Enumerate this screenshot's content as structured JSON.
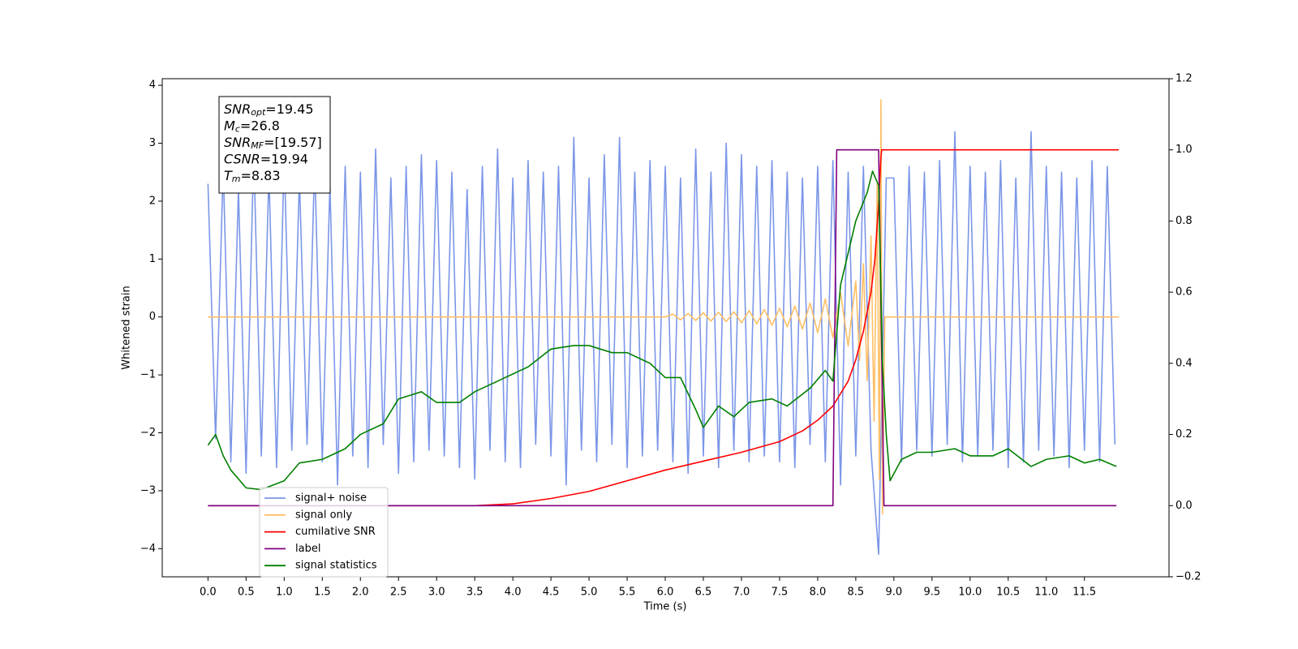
{
  "chart_data": {
    "type": "line",
    "xlabel": "Time (s)",
    "ylabel": "Whitened strain",
    "xlim": [
      -0.6,
      12.61
    ],
    "ylim": [
      -4.486,
      4.114
    ],
    "y2lim": [
      -0.2,
      1.2
    ],
    "xticks": [
      {
        "value": 0,
        "label": "0.0"
      },
      {
        "value": 0.5,
        "label": "0.5"
      },
      {
        "value": 1,
        "label": "1.0"
      },
      {
        "value": 1.5,
        "label": "1.5"
      },
      {
        "value": 2,
        "label": "2.0"
      },
      {
        "value": 2.5,
        "label": "2.5"
      },
      {
        "value": 3,
        "label": "3.0"
      },
      {
        "value": 3.5,
        "label": "3.5"
      },
      {
        "value": 4,
        "label": "4.0"
      },
      {
        "value": 4.5,
        "label": "4.5"
      },
      {
        "value": 5,
        "label": "5.0"
      },
      {
        "value": 5.5,
        "label": "5.5"
      },
      {
        "value": 6,
        "label": "6.0"
      },
      {
        "value": 6.5,
        "label": "6.5"
      },
      {
        "value": 7,
        "label": "7.0"
      },
      {
        "value": 7.5,
        "label": "7.5"
      },
      {
        "value": 8,
        "label": "8.0"
      },
      {
        "value": 8.5,
        "label": "8.5"
      },
      {
        "value": 9,
        "label": "9.0"
      },
      {
        "value": 9.5,
        "label": "9.5"
      },
      {
        "value": 10,
        "label": "10.0"
      },
      {
        "value": 10.5,
        "label": "10.5"
      },
      {
        "value": 11,
        "label": "11.0"
      },
      {
        "value": 11.5,
        "label": "11.5"
      }
    ],
    "yticks": [
      {
        "value": -4,
        "label": "−4"
      },
      {
        "value": -3,
        "label": "−3"
      },
      {
        "value": -2,
        "label": "−2"
      },
      {
        "value": -1,
        "label": "−1"
      },
      0,
      1,
      2,
      3,
      4
    ],
    "y2ticks": [
      {
        "value": -0.2,
        "label": "−0.2"
      },
      {
        "value": 0,
        "label": "0.0"
      },
      {
        "value": 0.2,
        "label": "0.2"
      },
      {
        "value": 0.4,
        "label": "0.4"
      },
      {
        "value": 0.6,
        "label": "0.6"
      },
      {
        "value": 0.8,
        "label": "0.8"
      },
      {
        "value": 1,
        "label": "1.0"
      },
      {
        "value": 1.2,
        "label": "1.2"
      }
    ],
    "legend_position": "lower left",
    "annotation": [
      {
        "text": "SNR",
        "sub": "opt",
        "value": "=19.45"
      },
      {
        "text": "M",
        "sub": "c",
        "value": "=26.8"
      },
      {
        "text": "SNR",
        "sub": "MF",
        "value": "=[19.57]"
      },
      {
        "text": "CSNR",
        "value": "=19.94"
      },
      {
        "text": "T",
        "sub": "m",
        "value": "=8.83"
      }
    ],
    "series": [
      {
        "name": "signal+ noise",
        "color": "#7b96e8",
        "x": [
          0.0,
          0.1,
          0.2,
          0.3,
          0.4,
          0.5,
          0.6,
          0.7,
          0.8,
          0.9,
          1.0,
          1.1,
          1.2,
          1.3,
          1.4,
          1.5,
          1.6,
          1.7,
          1.8,
          1.9,
          2.0,
          2.1,
          2.2,
          2.3,
          2.4,
          2.5,
          2.6,
          2.7,
          2.8,
          2.9,
          3.0,
          3.1,
          3.2,
          3.3,
          3.4,
          3.5,
          3.6,
          3.7,
          3.8,
          3.9,
          4.0,
          4.1,
          4.2,
          4.3,
          4.4,
          4.5,
          4.6,
          4.7,
          4.8,
          4.9,
          5.0,
          5.1,
          5.2,
          5.3,
          5.4,
          5.5,
          5.6,
          5.7,
          5.8,
          5.9,
          6.0,
          6.1,
          6.2,
          6.3,
          6.4,
          6.5,
          6.6,
          6.7,
          6.8,
          6.9,
          7.0,
          7.1,
          7.2,
          7.3,
          7.4,
          7.5,
          7.6,
          7.7,
          7.8,
          7.9,
          8.0,
          8.1,
          8.2,
          8.3,
          8.4,
          8.5,
          8.6,
          8.7,
          8.8,
          8.9,
          9.0,
          9.1,
          9.2,
          9.3,
          9.4,
          9.5,
          9.6,
          9.7,
          9.8,
          9.9,
          10.0,
          10.1,
          10.2,
          10.3,
          10.4,
          10.5,
          10.6,
          10.7,
          10.8,
          10.9,
          11.0,
          11.1,
          11.2,
          11.3,
          11.4,
          11.5,
          11.6,
          11.7,
          11.8,
          11.9
        ],
        "values": [
          2.3,
          -2.1,
          2.6,
          -2.5,
          2.2,
          -2.7,
          2.9,
          -2.4,
          2.5,
          -2.6,
          2.8,
          -2.3,
          2.4,
          -2.2,
          2.7,
          -2.5,
          2.3,
          -2.9,
          2.6,
          -2.4,
          2.5,
          -2.6,
          2.9,
          -2.2,
          2.4,
          -2.7,
          2.6,
          -2.5,
          2.8,
          -2.3,
          2.7,
          -2.4,
          2.5,
          -2.6,
          2.2,
          -2.8,
          2.6,
          -2.3,
          2.9,
          -2.5,
          2.4,
          -2.6,
          2.7,
          -2.2,
          2.5,
          -2.4,
          2.6,
          -2.9,
          3.1,
          -2.3,
          2.4,
          -2.5,
          2.8,
          -2.2,
          3.1,
          -2.6,
          2.5,
          -2.4,
          2.7,
          -2.3,
          2.6,
          -2.5,
          2.4,
          -2.7,
          2.9,
          -2.4,
          2.5,
          -2.6,
          3.0,
          -2.3,
          2.8,
          -2.5,
          2.6,
          -2.4,
          2.7,
          -2.5,
          2.5,
          -2.6,
          2.4,
          -2.2,
          2.6,
          -2.5,
          2.7,
          -2.9,
          2.5,
          -2.4,
          2.6,
          -2.3,
          -4.1,
          2.4,
          2.4,
          -2.5,
          2.6,
          -2.3,
          2.5,
          -2.4,
          2.7,
          -2.2,
          3.2,
          -2.5,
          2.6,
          -2.4,
          2.5,
          -2.3,
          2.7,
          -2.6,
          2.4,
          -2.5,
          3.2,
          -2.3,
          2.6,
          -2.4,
          2.5,
          -2.6,
          2.4,
          -2.3,
          2.7,
          -2.5,
          2.6,
          -2.2
        ]
      },
      {
        "name": "signal only",
        "color": "#ffbf66",
        "x": [
          0.0,
          6.0,
          6.1,
          6.2,
          6.3,
          6.4,
          6.5,
          6.6,
          6.7,
          6.8,
          6.9,
          7.0,
          7.1,
          7.2,
          7.3,
          7.4,
          7.5,
          7.6,
          7.7,
          7.8,
          7.9,
          8.0,
          8.1,
          8.2,
          8.3,
          8.4,
          8.5,
          8.55,
          8.6,
          8.65,
          8.7,
          8.74,
          8.78,
          8.81,
          8.83,
          8.85,
          8.88,
          11.95
        ],
        "values": [
          0,
          0,
          0.05,
          -0.05,
          0.06,
          -0.06,
          0.07,
          -0.07,
          0.08,
          -0.08,
          0.09,
          -0.1,
          0.11,
          -0.12,
          0.13,
          -0.14,
          0.15,
          -0.17,
          0.19,
          -0.21,
          0.24,
          -0.27,
          0.31,
          -0.36,
          0.42,
          -0.5,
          0.62,
          -0.75,
          0.92,
          -1.1,
          1.4,
          -1.8,
          2.3,
          -2.8,
          3.75,
          -3.4,
          0,
          0
        ]
      },
      {
        "name": "cumilative SNR",
        "color": "#ff0000",
        "axis": "y2",
        "x": [
          0,
          3.5,
          4.0,
          4.5,
          5.0,
          5.5,
          6.0,
          6.5,
          7.0,
          7.5,
          7.8,
          8.0,
          8.2,
          8.4,
          8.5,
          8.6,
          8.7,
          8.75,
          8.8,
          8.83,
          8.84,
          11.95
        ],
        "values": [
          0,
          0,
          0.005,
          0.02,
          0.04,
          0.07,
          0.1,
          0.125,
          0.15,
          0.18,
          0.21,
          0.24,
          0.28,
          0.35,
          0.41,
          0.49,
          0.6,
          0.69,
          0.85,
          0.98,
          1.0,
          1.0
        ]
      },
      {
        "name": "label",
        "color": "#800080",
        "axis": "y2",
        "x": [
          0,
          8.2,
          8.25,
          8.8,
          8.87,
          11.92
        ],
        "values": [
          0,
          0,
          1,
          1,
          0,
          0
        ]
      },
      {
        "name": "signal statistics",
        "color": "#008000",
        "axis": "y2",
        "x": [
          0.0,
          0.1,
          0.2,
          0.3,
          0.5,
          0.7,
          1.0,
          1.2,
          1.5,
          1.8,
          2.0,
          2.3,
          2.5,
          2.8,
          3.0,
          3.3,
          3.5,
          3.8,
          4.0,
          4.2,
          4.5,
          4.8,
          5.0,
          5.3,
          5.5,
          5.8,
          6.0,
          6.2,
          6.4,
          6.5,
          6.7,
          6.9,
          7.1,
          7.4,
          7.6,
          7.9,
          8.1,
          8.2,
          8.3,
          8.5,
          8.65,
          8.72,
          8.8,
          8.85,
          8.9,
          8.95,
          9.1,
          9.3,
          9.5,
          9.8,
          10.0,
          10.3,
          10.5,
          10.8,
          11.0,
          11.3,
          11.5,
          11.7,
          11.92
        ],
        "values": [
          0.17,
          0.2,
          0.14,
          0.1,
          0.05,
          0.045,
          0.07,
          0.12,
          0.13,
          0.16,
          0.2,
          0.23,
          0.3,
          0.32,
          0.29,
          0.29,
          0.32,
          0.35,
          0.37,
          0.39,
          0.44,
          0.45,
          0.45,
          0.43,
          0.43,
          0.4,
          0.36,
          0.36,
          0.27,
          0.22,
          0.28,
          0.25,
          0.29,
          0.3,
          0.28,
          0.33,
          0.38,
          0.35,
          0.62,
          0.8,
          0.88,
          0.94,
          0.9,
          0.4,
          0.2,
          0.07,
          0.13,
          0.15,
          0.15,
          0.16,
          0.14,
          0.14,
          0.16,
          0.11,
          0.13,
          0.14,
          0.12,
          0.13,
          0.11
        ]
      }
    ]
  }
}
